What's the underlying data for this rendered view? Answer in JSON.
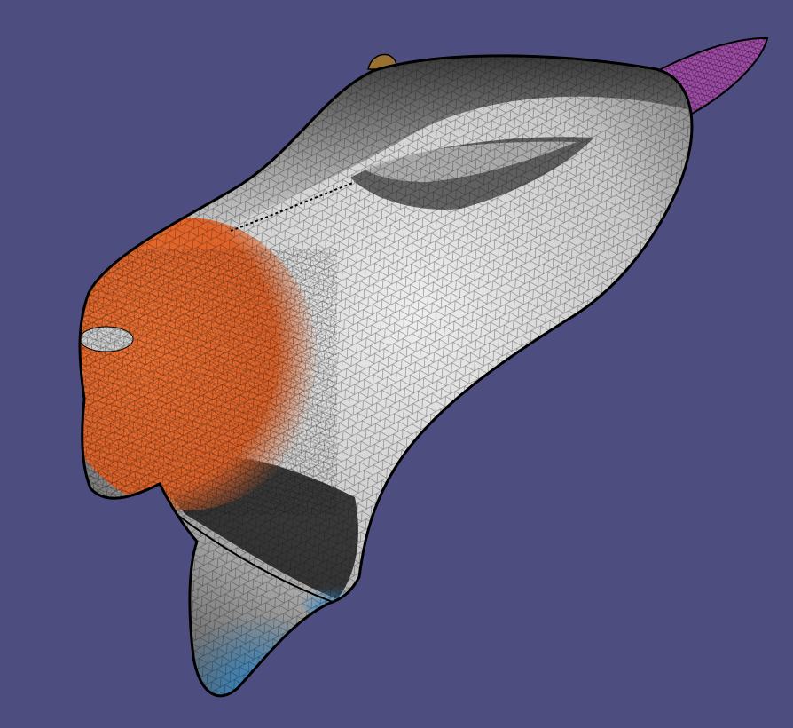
{
  "viewport": {
    "background_color": "#4e4d80",
    "render_mode": "shaded-with-wireframe"
  },
  "mesh": {
    "base_color": "#d6d6d6",
    "wire_color": "#111111",
    "outline_color": "#000000",
    "regions": [
      {
        "name": "snout",
        "color": "#e8662a"
      },
      {
        "name": "jaw-tip",
        "color": "#2b84c6"
      },
      {
        "name": "ear",
        "color": "#a04aa8"
      },
      {
        "name": "horn-nub",
        "color": "#9a7030"
      }
    ]
  }
}
